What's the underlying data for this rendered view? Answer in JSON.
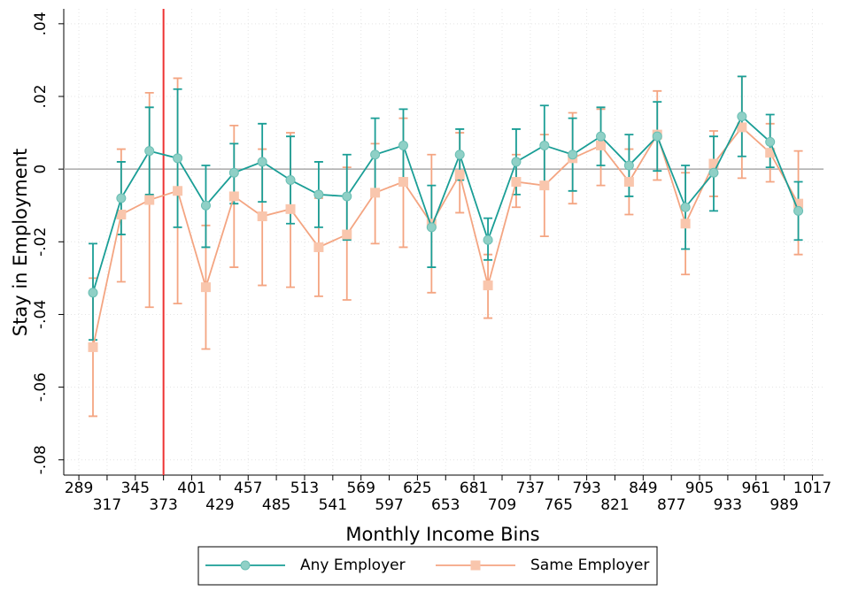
{
  "chart_data": {
    "type": "errorbar-line",
    "y_label": "Stay in Employment",
    "x_label": "Monthly Income Bins",
    "xlim": [
      274,
      1028
    ],
    "ylim": [
      -0.0842,
      0.0441
    ],
    "xticks": [
      289,
      317,
      345,
      373,
      401,
      429,
      457,
      485,
      513,
      541,
      569,
      597,
      625,
      653,
      681,
      709,
      737,
      765,
      793,
      821,
      849,
      877,
      905,
      933,
      961,
      989,
      1017
    ],
    "yticks": [
      {
        "value": -0.08,
        "label": "-.08"
      },
      {
        "value": -0.06,
        "label": "-.06"
      },
      {
        "value": -0.04,
        "label": "-.04"
      },
      {
        "value": -0.02,
        "label": "-.02"
      },
      0,
      {
        "value": 0.02,
        "label": ".02"
      },
      {
        "value": 0.04,
        "label": ".04"
      }
    ],
    "grid": true,
    "hline": 0,
    "hline_color": "#aaaaaa",
    "vline": 373,
    "vline_color": "#ee3333",
    "legend_position": "bottom",
    "x": [
      303,
      331,
      359,
      387,
      415,
      443,
      471,
      499,
      527,
      555,
      583,
      611,
      639,
      667,
      695,
      723,
      751,
      779,
      807,
      835,
      863,
      891,
      919,
      947,
      975,
      1003
    ],
    "series": [
      {
        "name": "Any Employer",
        "color": "#1a9e96",
        "marker": "circle",
        "marker_color": "#8fd0c6",
        "values": [
          -0.034,
          -0.008,
          0.005,
          0.003,
          -0.01,
          -0.001,
          0.002,
          -0.003,
          -0.007,
          -0.0075,
          0.004,
          0.0065,
          -0.016,
          0.004,
          -0.0195,
          0.002,
          0.0065,
          0.004,
          0.009,
          0.001,
          0.009,
          -0.0105,
          -0.001,
          0.0145,
          0.0075,
          -0.0115
        ],
        "lower": [
          -0.047,
          -0.018,
          -0.007,
          -0.016,
          -0.0215,
          -0.0095,
          -0.009,
          -0.015,
          -0.016,
          -0.0195,
          -0.006,
          -0.0035,
          -0.027,
          -0.003,
          -0.025,
          -0.007,
          -0.0045,
          -0.006,
          0.001,
          -0.0075,
          -0.0005,
          -0.022,
          -0.0115,
          0.0035,
          0.0005,
          -0.0195
        ],
        "upper": [
          -0.0205,
          0.002,
          0.017,
          0.022,
          0.001,
          0.007,
          0.0125,
          0.009,
          0.002,
          0.004,
          0.014,
          0.0165,
          -0.0045,
          0.011,
          -0.0135,
          0.011,
          0.0175,
          0.014,
          0.017,
          0.0095,
          0.0185,
          0.001,
          0.009,
          0.0255,
          0.015,
          -0.0035
        ]
      },
      {
        "name": "Same Employer",
        "color": "#f4a582",
        "marker": "square",
        "marker_color": "#f9c6ad",
        "values": [
          -0.049,
          -0.0125,
          -0.0085,
          -0.006,
          -0.0325,
          -0.0075,
          -0.013,
          -0.011,
          -0.0215,
          -0.018,
          -0.0065,
          -0.0035,
          -0.015,
          -0.0015,
          -0.032,
          -0.0035,
          -0.0045,
          0.003,
          0.0065,
          -0.0035,
          0.0095,
          -0.015,
          0.0015,
          0.0115,
          0.0045,
          -0.0095
        ],
        "lower": [
          -0.068,
          -0.031,
          -0.038,
          -0.037,
          -0.0495,
          -0.027,
          -0.032,
          -0.0325,
          -0.035,
          -0.036,
          -0.0205,
          -0.0215,
          -0.034,
          -0.012,
          -0.041,
          -0.0105,
          -0.0185,
          -0.0095,
          -0.0045,
          -0.0125,
          -0.003,
          -0.029,
          -0.0075,
          -0.0025,
          -0.0035,
          -0.0235
        ],
        "upper": [
          -0.03,
          0.0055,
          0.021,
          0.025,
          -0.0155,
          0.012,
          0.0055,
          0.01,
          -0.008,
          0.0005,
          0.007,
          0.014,
          0.004,
          0.01,
          -0.0235,
          0.004,
          0.0095,
          0.0155,
          0.0165,
          0.0055,
          0.0215,
          -0.001,
          0.0105,
          0.0255,
          0.0125,
          0.005
        ]
      }
    ]
  }
}
